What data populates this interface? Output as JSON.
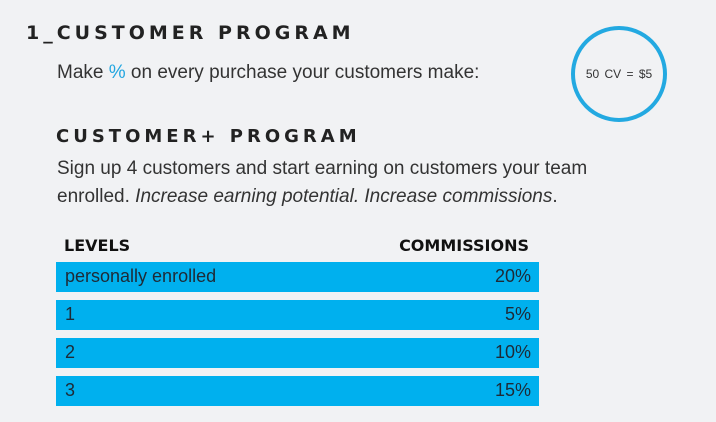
{
  "customer_program": {
    "title": "1_CUSTOMER PROGRAM",
    "line_before": "Make ",
    "percent_symbol": "%",
    "line_after": " on every purchase your customers make:"
  },
  "badge": {
    "text": "50 CV = $5"
  },
  "customer_plus": {
    "title": "CUSTOMER+ PROGRAM",
    "desc_line1": "Sign up 4 customers and start earning on customers your team",
    "desc_line2_plain": "enrolled. ",
    "desc_line2_italic": "Increase earning potential. Increase commissions",
    "desc_line2_end": "."
  },
  "table": {
    "headers": [
      "LEVELS",
      "COMMISSIONS"
    ],
    "rows": [
      {
        "level": "personally enrolled",
        "commission": "20%"
      },
      {
        "level": "1",
        "commission": "5%"
      },
      {
        "level": "2",
        "commission": "10%"
      },
      {
        "level": "3",
        "commission": "15%"
      }
    ]
  },
  "colors": {
    "accent": "#00b0ee",
    "badge_border": "#23a9e1",
    "background": "#f1f2f4"
  }
}
